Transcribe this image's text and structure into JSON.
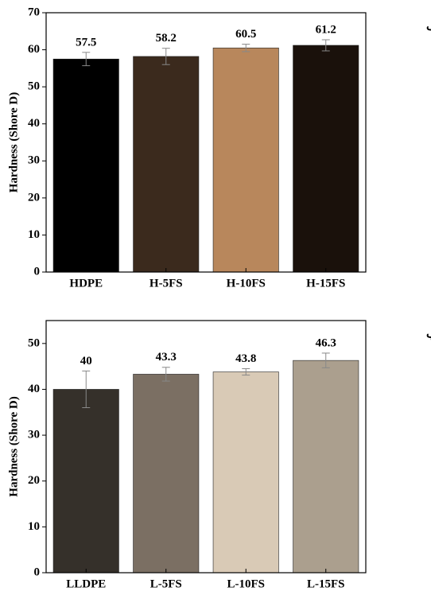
{
  "chart_data": [
    {
      "type": "bar",
      "panel_label": "(a–الف",
      "ylabel": "Hardness (Shore D)",
      "categories": [
        "HDPE",
        "H-5FS",
        "H-10FS",
        "H-15FS"
      ],
      "values": [
        57.5,
        58.2,
        60.5,
        61.2
      ],
      "errors": [
        1.8,
        2.2,
        1.0,
        1.5
      ],
      "colors": [
        "#000000",
        "#3b2a1d",
        "#b8875c",
        "#1a110b"
      ],
      "ylim": [
        0,
        70
      ],
      "yticks": [
        0,
        10,
        20,
        30,
        40,
        50,
        60,
        70
      ]
    },
    {
      "type": "bar",
      "panel_label": "(b–ب",
      "ylabel": "Hardness (Shore D)",
      "categories": [
        "LLDPE",
        "L-5FS",
        "L-10FS",
        "L-15FS"
      ],
      "values": [
        40,
        43.3,
        43.8,
        46.3
      ],
      "errors": [
        4.0,
        1.5,
        0.7,
        1.6
      ],
      "colors": [
        "#35302a",
        "#7b6f63",
        "#d9cab6",
        "#ab9f8e"
      ],
      "ylim": [
        0,
        55
      ],
      "yticks": [
        0,
        10,
        20,
        30,
        40,
        50
      ]
    }
  ]
}
